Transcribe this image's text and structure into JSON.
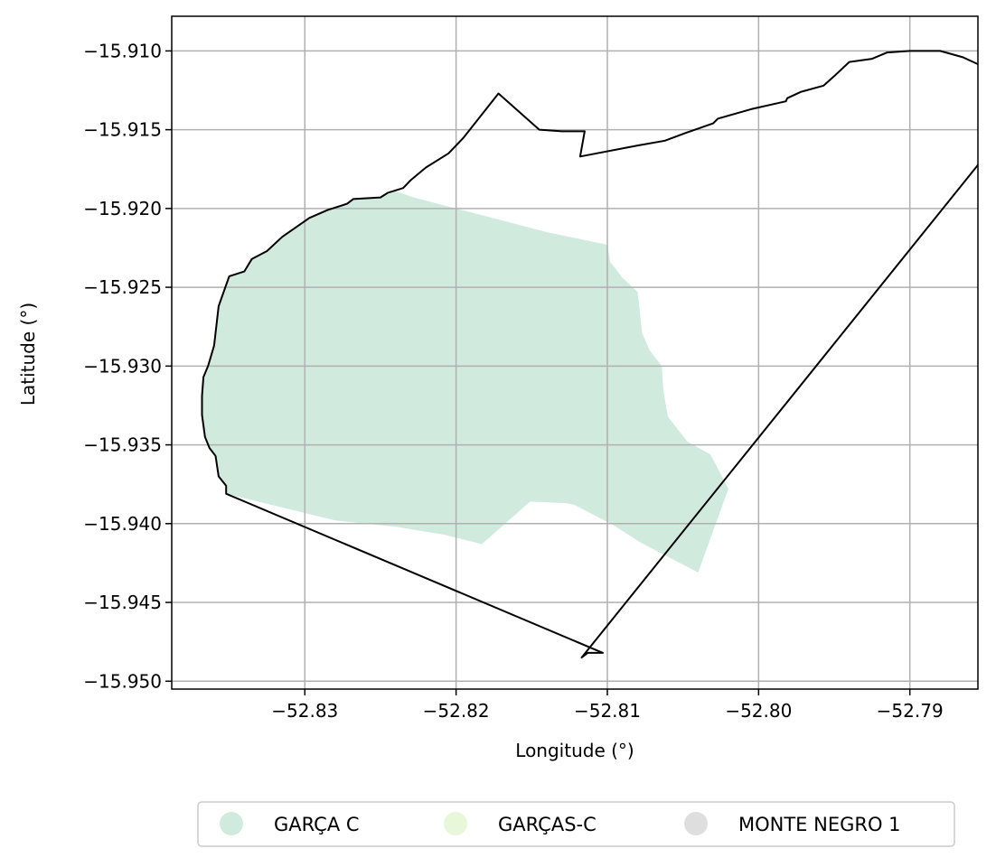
{
  "chart_data": {
    "type": "map",
    "xlabel": "Longitude (°)",
    "ylabel": "Latitude (°)",
    "xlim": [
      -52.8388,
      -52.7855
    ],
    "ylim": [
      -15.9505,
      -15.9078
    ],
    "grid": true,
    "x_ticks": [
      {
        "value": -52.83,
        "label": "−52.83"
      },
      {
        "value": -52.82,
        "label": "−52.82"
      },
      {
        "value": -52.81,
        "label": "−52.81"
      },
      {
        "value": -52.8,
        "label": "−52.80"
      },
      {
        "value": -52.79,
        "label": "−52.79"
      }
    ],
    "y_ticks": [
      {
        "value": -15.91,
        "label": "−15.910"
      },
      {
        "value": -15.915,
        "label": "−15.915"
      },
      {
        "value": -15.92,
        "label": "−15.920"
      },
      {
        "value": -15.925,
        "label": "−15.925"
      },
      {
        "value": -15.93,
        "label": "−15.930"
      },
      {
        "value": -15.935,
        "label": "−15.935"
      },
      {
        "value": -15.94,
        "label": "−15.940"
      },
      {
        "value": -15.945,
        "label": "−15.945"
      },
      {
        "value": -15.95,
        "label": "−15.950"
      }
    ],
    "boundary": {
      "color": "#000000",
      "coordinates": [
        [
          -52.8172,
          -15.9127
        ],
        [
          -52.8145,
          -15.915
        ],
        [
          -52.813,
          -15.9151
        ],
        [
          -52.8115,
          -15.9151
        ],
        [
          -52.8118,
          -15.9167
        ],
        [
          -52.808,
          -15.916
        ],
        [
          -52.8062,
          -15.9157
        ],
        [
          -52.8048,
          -15.9152
        ],
        [
          -52.803,
          -15.9146
        ],
        [
          -52.8027,
          -15.9143
        ],
        [
          -52.8005,
          -15.9137
        ],
        [
          -52.7982,
          -15.9132
        ],
        [
          -52.7981,
          -15.913
        ],
        [
          -52.7972,
          -15.9126
        ],
        [
          -52.7957,
          -15.9122
        ],
        [
          -52.795,
          -15.9116
        ],
        [
          -52.794,
          -15.9107
        ],
        [
          -52.7925,
          -15.9105
        ],
        [
          -52.7915,
          -15.9101
        ],
        [
          -52.79,
          -15.91
        ],
        [
          -52.788,
          -15.91
        ],
        [
          -52.7865,
          -15.9104
        ],
        [
          -52.784,
          -15.9115
        ],
        [
          -52.7825,
          -15.9128
        ],
        [
          -52.7822,
          -15.9133
        ],
        [
          -52.8117,
          -15.9485
        ],
        [
          -52.8113,
          -15.9482
        ],
        [
          -52.8103,
          -15.9482
        ],
        [
          -52.8352,
          -15.9381
        ],
        [
          -52.8352,
          -15.9376
        ],
        [
          -52.8357,
          -15.937
        ],
        [
          -52.8359,
          -15.9357
        ],
        [
          -52.8363,
          -15.9352
        ],
        [
          -52.8366,
          -15.9345
        ],
        [
          -52.8368,
          -15.9331
        ],
        [
          -52.8368,
          -15.9319
        ],
        [
          -52.8367,
          -15.9307
        ],
        [
          -52.8364,
          -15.93
        ],
        [
          -52.836,
          -15.9287
        ],
        [
          -52.8357,
          -15.9262
        ],
        [
          -52.835,
          -15.9243
        ],
        [
          -52.834,
          -15.924
        ],
        [
          -52.8335,
          -15.9232
        ],
        [
          -52.8325,
          -15.9227
        ],
        [
          -52.8315,
          -15.9218
        ],
        [
          -52.8297,
          -15.9206
        ],
        [
          -52.8285,
          -15.9201
        ],
        [
          -52.8272,
          -15.9197
        ],
        [
          -52.8268,
          -15.9194
        ],
        [
          -52.825,
          -15.9193
        ],
        [
          -52.8245,
          -15.919
        ],
        [
          -52.8235,
          -15.9187
        ],
        [
          -52.823,
          -15.9182
        ],
        [
          -52.822,
          -15.9174
        ],
        [
          -52.8205,
          -15.9165
        ],
        [
          -52.8195,
          -15.9155
        ],
        [
          -52.8172,
          -15.9127
        ]
      ]
    },
    "zones": [
      {
        "name": "GARÇA C",
        "color": "#d0ebdd",
        "coordinates": [
          [
            -52.824,
            -15.9189
          ],
          [
            -52.8228,
            -15.9193
          ],
          [
            -52.82,
            -15.92
          ],
          [
            -52.8168,
            -15.9208
          ],
          [
            -52.814,
            -15.9215
          ],
          [
            -52.81,
            -15.9223
          ],
          [
            -52.8098,
            -15.9234
          ],
          [
            -52.809,
            -15.9244
          ],
          [
            -52.808,
            -15.9253
          ],
          [
            -52.8077,
            -15.9279
          ],
          [
            -52.8072,
            -15.929
          ],
          [
            -52.8064,
            -15.93
          ],
          [
            -52.8063,
            -15.9315
          ],
          [
            -52.806,
            -15.9332
          ],
          [
            -52.8047,
            -15.9348
          ],
          [
            -52.8032,
            -15.9356
          ],
          [
            -52.8028,
            -15.9363
          ],
          [
            -52.802,
            -15.9378
          ],
          [
            -52.804,
            -15.9431
          ],
          [
            -52.8078,
            -15.9412
          ],
          [
            -52.8096,
            -15.9401
          ],
          [
            -52.8122,
            -15.9388
          ],
          [
            -52.8127,
            -15.9387
          ],
          [
            -52.8151,
            -15.9386
          ],
          [
            -52.8183,
            -15.9413
          ],
          [
            -52.8208,
            -15.9407
          ],
          [
            -52.824,
            -15.9402
          ],
          [
            -52.828,
            -15.9398
          ],
          [
            -52.8352,
            -15.9381
          ],
          [
            -52.8352,
            -15.9376
          ],
          [
            -52.8357,
            -15.937
          ],
          [
            -52.8359,
            -15.9357
          ],
          [
            -52.8363,
            -15.9352
          ],
          [
            -52.8366,
            -15.9345
          ],
          [
            -52.8368,
            -15.9331
          ],
          [
            -52.8368,
            -15.9319
          ],
          [
            -52.8367,
            -15.9307
          ],
          [
            -52.8364,
            -15.93
          ],
          [
            -52.836,
            -15.9287
          ],
          [
            -52.8357,
            -15.9262
          ],
          [
            -52.835,
            -15.9243
          ],
          [
            -52.834,
            -15.924
          ],
          [
            -52.8335,
            -15.9232
          ],
          [
            -52.8325,
            -15.9227
          ],
          [
            -52.8315,
            -15.9218
          ],
          [
            -52.8297,
            -15.9206
          ],
          [
            -52.8285,
            -15.9201
          ],
          [
            -52.8272,
            -15.9197
          ],
          [
            -52.8268,
            -15.9194
          ],
          [
            -52.825,
            -15.9193
          ],
          [
            -52.824,
            -15.9189
          ]
        ]
      },
      {
        "name": "GARÇAS-C",
        "color": "#e8f6d9",
        "coordinates": []
      },
      {
        "name": "MONTE NEGRO 1",
        "color": "#dedede",
        "coordinates": []
      }
    ],
    "legend": {
      "position": "bottom-center",
      "entries": [
        {
          "label": "GARÇA C",
          "color": "#d0ebdd"
        },
        {
          "label": "GARÇAS-C",
          "color": "#e8f6d9"
        },
        {
          "label": "MONTE NEGRO 1",
          "color": "#dedede"
        }
      ]
    }
  }
}
